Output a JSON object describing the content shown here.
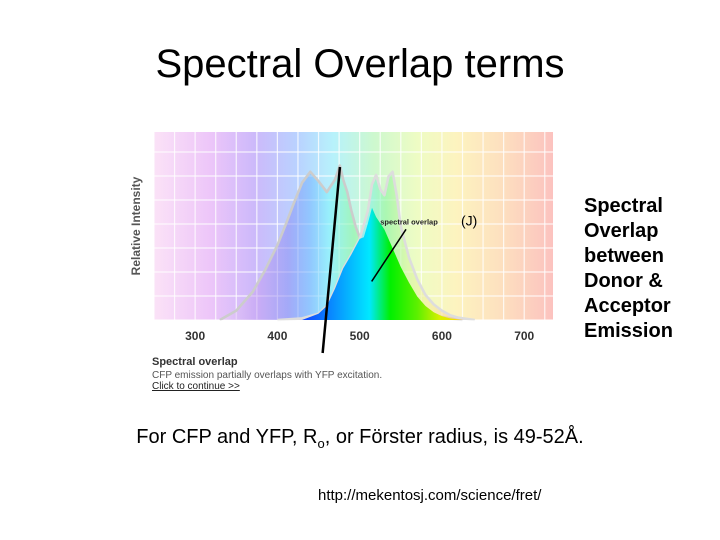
{
  "slide": {
    "title": "Spectral Overlap terms",
    "side_note": "Spectral Overlap between Donor & Acceptor Emission",
    "fact": {
      "prefix": "For CFP and YFP, R",
      "subscript": "o",
      "suffix": ", or Förster radius, is 49-52Å."
    },
    "url": "http://mekentosj.com/science/fret/"
  },
  "figure": {
    "caption_title": "Spectral overlap",
    "caption_sub": "CFP emission partially overlaps with YFP excitation.",
    "caption_link": "Click to continue >>"
  },
  "chart_data": {
    "type": "area",
    "title": "",
    "xlabel": "",
    "ylabel": "Relative Intensity",
    "xlim": [
      250,
      735
    ],
    "ylim": [
      0,
      1
    ],
    "xticks": [
      300,
      400,
      500,
      600,
      700
    ],
    "grid": true,
    "legend": "none",
    "series": [
      {
        "x": [
          330,
          350,
          370,
          385,
          400,
          410,
          420,
          430,
          440,
          450,
          460,
          470,
          476,
          480,
          485,
          490,
          495,
          500,
          505,
          510,
          520,
          530,
          540,
          550,
          560,
          570,
          580,
          590,
          600,
          610,
          625
        ],
        "y": [
          0.0,
          0.06,
          0.18,
          0.32,
          0.48,
          0.61,
          0.75,
          0.88,
          0.95,
          0.89,
          0.82,
          0.9,
          0.99,
          0.9,
          0.82,
          0.7,
          0.6,
          0.53,
          0.48,
          0.44,
          0.36,
          0.28,
          0.22,
          0.17,
          0.12,
          0.08,
          0.05,
          0.03,
          0.02,
          0.01,
          0.0
        ],
        "color": "#cccccc"
      },
      {
        "x": [
          400,
          430,
          450,
          460,
          470,
          480,
          490,
          500,
          510,
          515,
          520,
          525,
          530,
          535,
          540,
          545,
          550,
          560,
          570,
          580,
          590,
          600,
          610,
          620,
          640
        ],
        "y": [
          0.0,
          0.01,
          0.04,
          0.09,
          0.2,
          0.33,
          0.42,
          0.52,
          0.7,
          0.87,
          0.93,
          0.84,
          0.8,
          0.92,
          0.95,
          0.8,
          0.6,
          0.4,
          0.26,
          0.16,
          0.1,
          0.06,
          0.03,
          0.015,
          0.0
        ],
        "color": "#dddddd"
      }
    ],
    "overlap": {
      "x": [
        430,
        450,
        460,
        470,
        480,
        490,
        500,
        505,
        510,
        515,
        520,
        530,
        540,
        550,
        560,
        570,
        580,
        590,
        600,
        610,
        625
      ],
      "y": [
        0.0,
        0.04,
        0.09,
        0.2,
        0.33,
        0.42,
        0.52,
        0.53,
        0.62,
        0.72,
        0.66,
        0.58,
        0.46,
        0.34,
        0.24,
        0.15,
        0.09,
        0.05,
        0.025,
        0.01,
        0.0
      ]
    },
    "marker_line": {
      "x_bottom": 455,
      "x_top": 476
    },
    "annotation": {
      "label": "spectral overlap",
      "symbol": "(J)",
      "point": {
        "x": 517,
        "y": 0.26
      },
      "label_at": {
        "x": 560,
        "y": 0.62
      }
    }
  }
}
